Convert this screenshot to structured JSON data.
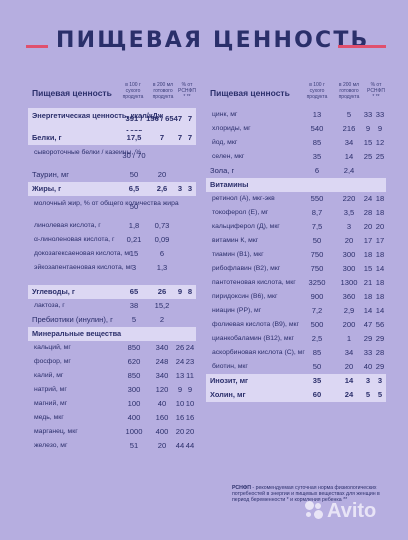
{
  "title": "ПИЩЕВАЯ ЦЕННОСТЬ",
  "header": {
    "name": "Пищевая ценность",
    "col1": "в 100 г сухого продукта",
    "col2": "в 200 мл готового продукта",
    "col3": "% от РСНФП * **"
  },
  "left_rows": [
    {
      "name": "Энергетическая ценность, ккал/кДж",
      "v1": "391 / 1635",
      "v2": "156 / 654",
      "v3": "7",
      "v4": "7",
      "kind": "sec tall"
    },
    {
      "name": "Белки, г",
      "v1": "17,5",
      "v2": "7",
      "v3": "7",
      "v4": "7",
      "kind": "sec"
    },
    {
      "name": "сывороточные белки / казеины, %",
      "v1": "30 / 70",
      "v2": "",
      "v3": "",
      "v4": "",
      "kind": "sub tall"
    },
    {
      "name": "Таурин, мг",
      "v1": "50",
      "v2": "20",
      "v3": "",
      "v4": "",
      "kind": ""
    },
    {
      "name": "Жиры, г",
      "v1": "6,5",
      "v2": "2,6",
      "v3": "3",
      "v4": "3",
      "kind": "sec"
    },
    {
      "name": "молочный жир, % от общего количества жира",
      "v1": "50",
      "v2": "",
      "v3": "",
      "v4": "",
      "kind": "sub tall"
    },
    {
      "name": "линолевая кислота, г",
      "v1": "1,8",
      "v2": "0,73",
      "v3": "",
      "v4": "",
      "kind": "sub"
    },
    {
      "name": "α-линоленовая кислота, г",
      "v1": "0,21",
      "v2": "0,09",
      "v3": "",
      "v4": "",
      "kind": "sub"
    },
    {
      "name": "докозагексаеновая кислота, мг",
      "v1": "15",
      "v2": "6",
      "v3": "",
      "v4": "",
      "kind": "sub"
    },
    {
      "name": "эйкозапентаеновая кислота, мг",
      "v1": "3",
      "v2": "1,3",
      "v3": "",
      "v4": "",
      "kind": "sub"
    },
    {
      "name": "",
      "v1": "",
      "v2": "",
      "v3": "",
      "v4": "",
      "kind": "blank"
    },
    {
      "name": "Углеводы, г",
      "v1": "65",
      "v2": "26",
      "v3": "9",
      "v4": "8",
      "kind": "sec"
    },
    {
      "name": "лактоза, г",
      "v1": "38",
      "v2": "15,2",
      "v3": "",
      "v4": "",
      "kind": "sub"
    },
    {
      "name": "Пребиотики (инулин), г",
      "v1": "5",
      "v2": "2",
      "v3": "",
      "v4": "",
      "kind": ""
    },
    {
      "name": "Минеральные вещества",
      "v1": "",
      "v2": "",
      "v3": "",
      "v4": "",
      "kind": "sec"
    },
    {
      "name": "кальций, мг",
      "v1": "850",
      "v2": "340",
      "v3": "26",
      "v4": "24",
      "kind": "sub"
    },
    {
      "name": "фосфор, мг",
      "v1": "620",
      "v2": "248",
      "v3": "24",
      "v4": "23",
      "kind": "sub"
    },
    {
      "name": "калий, мг",
      "v1": "850",
      "v2": "340",
      "v3": "13",
      "v4": "11",
      "kind": "sub"
    },
    {
      "name": "натрий, мг",
      "v1": "300",
      "v2": "120",
      "v3": "9",
      "v4": "9",
      "kind": "sub"
    },
    {
      "name": "магний, мг",
      "v1": "100",
      "v2": "40",
      "v3": "10",
      "v4": "10",
      "kind": "sub"
    },
    {
      "name": "медь, мкг",
      "v1": "400",
      "v2": "160",
      "v3": "16",
      "v4": "16",
      "kind": "sub"
    },
    {
      "name": "марганец, мкг",
      "v1": "1000",
      "v2": "400",
      "v3": "20",
      "v4": "20",
      "kind": "sub"
    },
    {
      "name": "железо, мг",
      "v1": "51",
      "v2": "20",
      "v3": "44",
      "v4": "44",
      "kind": "sub"
    }
  ],
  "right_rows": [
    {
      "name": "цинк, мг",
      "v1": "13",
      "v2": "5",
      "v3": "33",
      "v4": "33",
      "kind": "sub"
    },
    {
      "name": "хлориды, мг",
      "v1": "540",
      "v2": "216",
      "v3": "9",
      "v4": "9",
      "kind": "sub"
    },
    {
      "name": "йод, мкг",
      "v1": "85",
      "v2": "34",
      "v3": "15",
      "v4": "12",
      "kind": "sub"
    },
    {
      "name": "селен, мкг",
      "v1": "35",
      "v2": "14",
      "v3": "25",
      "v4": "25",
      "kind": "sub"
    },
    {
      "name": "Зола, г",
      "v1": "6",
      "v2": "2,4",
      "v3": "",
      "v4": "",
      "kind": ""
    },
    {
      "name": "Витамины",
      "v1": "",
      "v2": "",
      "v3": "",
      "v4": "",
      "kind": "sec"
    },
    {
      "name": "ретинол (А), мкг-экв",
      "v1": "550",
      "v2": "220",
      "v3": "24",
      "v4": "18",
      "kind": "sub"
    },
    {
      "name": "токоферол (Е), мг",
      "v1": "8,7",
      "v2": "3,5",
      "v3": "28",
      "v4": "18",
      "kind": "sub"
    },
    {
      "name": "кальциферол (Д), мкг",
      "v1": "7,5",
      "v2": "3",
      "v3": "20",
      "v4": "20",
      "kind": "sub"
    },
    {
      "name": "витамин К, мкг",
      "v1": "50",
      "v2": "20",
      "v3": "17",
      "v4": "17",
      "kind": "sub"
    },
    {
      "name": "тиамин (В1), мкг",
      "v1": "750",
      "v2": "300",
      "v3": "18",
      "v4": "18",
      "kind": "sub"
    },
    {
      "name": "рибофлавин (В2), мкг",
      "v1": "750",
      "v2": "300",
      "v3": "15",
      "v4": "14",
      "kind": "sub"
    },
    {
      "name": "пантотеновая кислота, мкг",
      "v1": "3250",
      "v2": "1300",
      "v3": "21",
      "v4": "18",
      "kind": "sub"
    },
    {
      "name": "пиридоксин (В6), мкг",
      "v1": "900",
      "v2": "360",
      "v3": "18",
      "v4": "18",
      "kind": "sub"
    },
    {
      "name": "ниацин (РР), мг",
      "v1": "7,2",
      "v2": "2,9",
      "v3": "14",
      "v4": "14",
      "kind": "sub"
    },
    {
      "name": "фолиевая кислота (В9), мкг",
      "v1": "500",
      "v2": "200",
      "v3": "47",
      "v4": "56",
      "kind": "sub"
    },
    {
      "name": "цианкобаламин (В12), мкг",
      "v1": "2,5",
      "v2": "1",
      "v3": "29",
      "v4": "29",
      "kind": "sub"
    },
    {
      "name": "аскорбиновая кислота (С), мг",
      "v1": "85",
      "v2": "34",
      "v3": "33",
      "v4": "28",
      "kind": "sub"
    },
    {
      "name": "биотин, мкг",
      "v1": "50",
      "v2": "20",
      "v3": "40",
      "v4": "29",
      "kind": "sub"
    },
    {
      "name": "Инозит, мг",
      "v1": "35",
      "v2": "14",
      "v3": "3",
      "v4": "3",
      "kind": "sec"
    },
    {
      "name": "Холин, мг",
      "v1": "60",
      "v2": "24",
      "v3": "5",
      "v4": "5",
      "kind": "sec"
    }
  ],
  "note": {
    "abbr": "РСНФП",
    "text": " - рекомендуемая суточная норма физиологических потребностей в энергии и пищевых веществах для женщин в период беременности * и кормления ребенка **"
  },
  "watermark": "Avito",
  "colors": {
    "background": "#b6aee0",
    "band": "#dcd7f3",
    "accent": "#e0506e",
    "text": "#2b2f6b"
  }
}
